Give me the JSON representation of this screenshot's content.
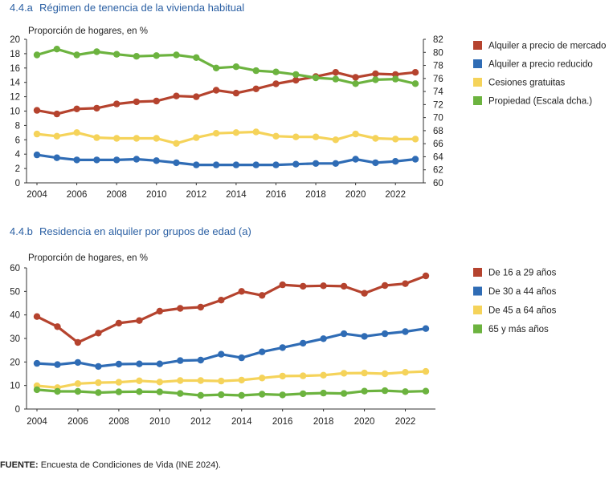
{
  "chart_data": [
    {
      "type": "line",
      "title_num": "4.4.a",
      "title": "Régimen de tenencia de la vivienda habitual",
      "ylabel": "Proporción de hogares, en %",
      "x": [
        2004,
        2005,
        2006,
        2007,
        2008,
        2009,
        2010,
        2011,
        2012,
        2013,
        2014,
        2015,
        2016,
        2017,
        2018,
        2019,
        2020,
        2021,
        2022,
        2023
      ],
      "xticks": [
        2004,
        2006,
        2008,
        2010,
        2012,
        2014,
        2016,
        2018,
        2020,
        2022
      ],
      "xlim": [
        2004,
        2023
      ],
      "ylim": [
        0,
        20
      ],
      "yticks": [
        0,
        2,
        4,
        6,
        8,
        10,
        12,
        14,
        16,
        18,
        20
      ],
      "y2lim": [
        60,
        82
      ],
      "y2ticks": [
        60,
        62,
        64,
        66,
        68,
        70,
        72,
        74,
        76,
        78,
        80,
        82
      ],
      "grid": false,
      "legend_position": "right",
      "series": [
        {
          "name": "Alquiler a precio de mercado",
          "color": "#b5432e",
          "axis": "left",
          "values": [
            10.1,
            9.6,
            10.3,
            10.4,
            11.0,
            11.3,
            11.4,
            12.1,
            12.0,
            12.9,
            12.5,
            13.1,
            13.8,
            14.3,
            14.8,
            15.4,
            14.7,
            15.2,
            15.1,
            15.4
          ]
        },
        {
          "name": "Alquiler a precio reducido",
          "color": "#2f6cb5",
          "axis": "left",
          "values": [
            3.9,
            3.5,
            3.2,
            3.2,
            3.2,
            3.3,
            3.1,
            2.8,
            2.5,
            2.5,
            2.5,
            2.5,
            2.5,
            2.6,
            2.7,
            2.7,
            3.3,
            2.8,
            3.0,
            3.3
          ]
        },
        {
          "name": "Cesiones gratuitas",
          "color": "#f5d35a",
          "axis": "left",
          "values": [
            6.8,
            6.5,
            7.0,
            6.3,
            6.2,
            6.2,
            6.2,
            5.5,
            6.3,
            6.9,
            7.0,
            7.1,
            6.5,
            6.4,
            6.4,
            6.0,
            6.8,
            6.2,
            6.1,
            6.1
          ]
        },
        {
          "name": "Propiedad (Escala dcha.)",
          "color": "#6cb33f",
          "axis": "right",
          "values": [
            79.6,
            80.5,
            79.6,
            80.1,
            79.7,
            79.4,
            79.5,
            79.6,
            79.2,
            77.6,
            77.8,
            77.2,
            77.0,
            76.6,
            76.1,
            75.9,
            75.2,
            75.8,
            75.9,
            75.2
          ]
        }
      ]
    },
    {
      "type": "line",
      "title_num": "4.4.b",
      "title": "Residencia en alquiler por grupos de edad (a)",
      "ylabel": "Proporción de hogares, en %",
      "x": [
        2004,
        2005,
        2006,
        2007,
        2008,
        2009,
        2010,
        2011,
        2012,
        2013,
        2014,
        2015,
        2016,
        2017,
        2018,
        2019,
        2020,
        2021,
        2022,
        2023
      ],
      "xticks": [
        2004,
        2006,
        2008,
        2010,
        2012,
        2014,
        2016,
        2018,
        2020,
        2022
      ],
      "xlim": [
        2004,
        2023
      ],
      "ylim": [
        0,
        60
      ],
      "yticks": [
        0,
        10,
        20,
        30,
        40,
        50,
        60
      ],
      "grid": false,
      "legend_position": "right",
      "series": [
        {
          "name": "De 16 a 29 años",
          "color": "#b5432e",
          "values": [
            39.3,
            35.0,
            28.3,
            32.3,
            36.5,
            37.6,
            41.6,
            42.8,
            43.3,
            46.3,
            50.0,
            48.3,
            52.8,
            52.2,
            52.4,
            52.2,
            49.2,
            52.5,
            53.3,
            56.6
          ]
        },
        {
          "name": "De 30 a 44 años",
          "color": "#2f6cb5",
          "values": [
            19.4,
            18.9,
            19.8,
            18.1,
            19.1,
            19.2,
            19.2,
            20.6,
            20.8,
            23.3,
            21.8,
            24.3,
            26.1,
            28.0,
            29.9,
            32.0,
            30.9,
            32.0,
            32.9,
            34.2
          ]
        },
        {
          "name": "De 45 a 64 años",
          "color": "#f5d35a",
          "values": [
            9.9,
            9.1,
            10.8,
            11.2,
            11.4,
            12.0,
            11.5,
            12.1,
            12.1,
            11.9,
            12.3,
            13.2,
            14.0,
            14.1,
            14.4,
            15.2,
            15.3,
            15.0,
            15.6,
            16.0
          ]
        },
        {
          "name": "65 y más años",
          "color": "#6cb33f",
          "values": [
            8.2,
            7.5,
            7.5,
            7.0,
            7.3,
            7.4,
            7.3,
            6.6,
            5.8,
            6.1,
            5.8,
            6.3,
            6.0,
            6.5,
            6.8,
            6.6,
            7.6,
            7.8,
            7.4,
            7.6
          ]
        }
      ]
    }
  ],
  "source": {
    "label": "FUENTE:",
    "text": " Encuesta de Condiciones de Vida (INE 2024)."
  }
}
